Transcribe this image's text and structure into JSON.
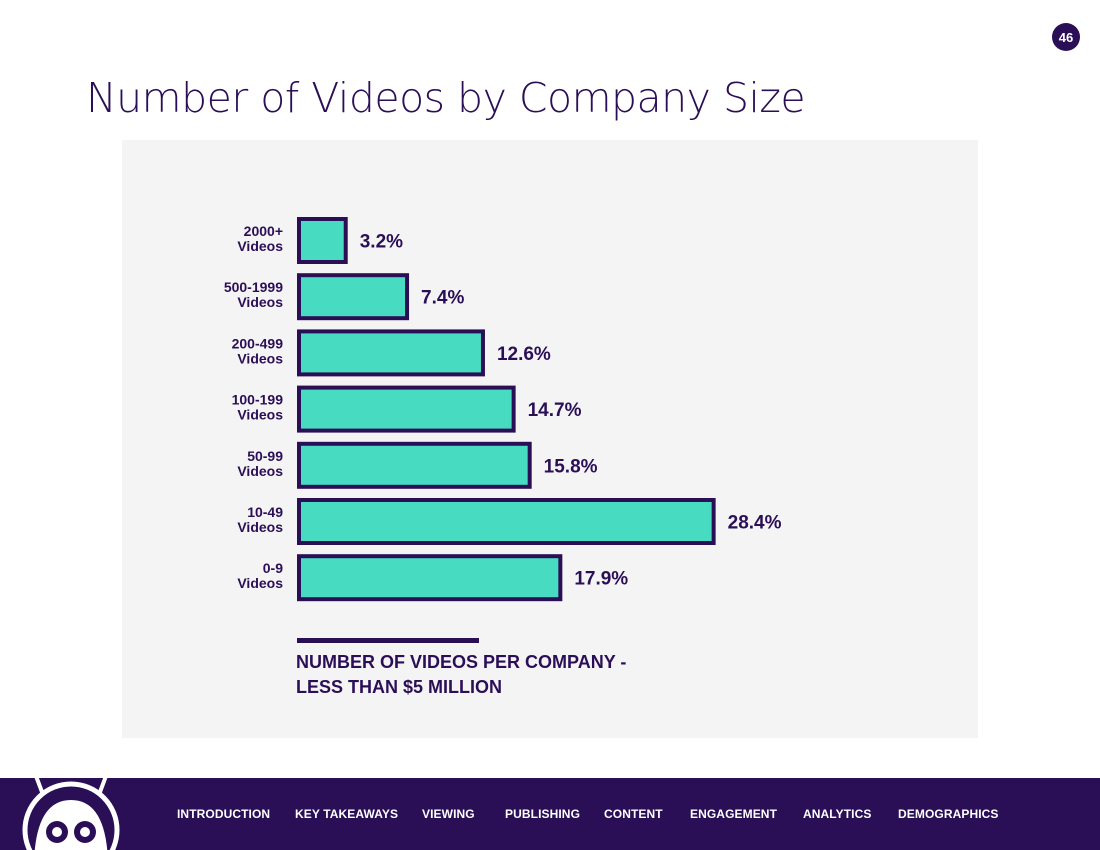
{
  "page_number": "46",
  "title": "Number of Videos by Company Size",
  "chart_data": {
    "type": "bar",
    "orientation": "horizontal",
    "categories": [
      [
        "2000+",
        "Videos"
      ],
      [
        "500-1999",
        "Videos"
      ],
      [
        "200-499",
        "Videos"
      ],
      [
        "100-199",
        "Videos"
      ],
      [
        "50-99",
        "Videos"
      ],
      [
        "10-49",
        "Videos"
      ],
      [
        "0-9",
        "Videos"
      ]
    ],
    "values": [
      3.2,
      7.4,
      12.6,
      14.7,
      15.8,
      28.4,
      17.9
    ],
    "value_labels": [
      "3.2%",
      "7.4%",
      "12.6%",
      "14.7%",
      "15.8%",
      "28.4%",
      "17.9%"
    ],
    "xlim": [
      0,
      30
    ],
    "unit": "%",
    "grid": false,
    "caption": "NUMBER OF VIDEOS PER COMPANY -\nLESS THAN $5 MILLION",
    "colors": {
      "bar_fill": "#47dcc2",
      "bar_stroke": "#2b0f56",
      "text": "#2b0f56",
      "panel": "#f4f4f5"
    }
  },
  "nav": {
    "items": [
      {
        "id": "introduction",
        "label": "INTRODUCTION"
      },
      {
        "id": "key-takeaways",
        "label": "KEY TAKEAWAYS"
      },
      {
        "id": "viewing",
        "label": "VIEWING"
      },
      {
        "id": "publishing",
        "label": "PUBLISHING"
      },
      {
        "id": "content",
        "label": "CONTENT"
      },
      {
        "id": "engagement",
        "label": "ENGAGEMENT"
      },
      {
        "id": "analytics",
        "label": "ANALYTICS"
      },
      {
        "id": "demographics",
        "label": "DEMOGRAPHICS"
      }
    ],
    "logo_icon": "robot-mascot-icon",
    "background": "#2b0f56"
  }
}
